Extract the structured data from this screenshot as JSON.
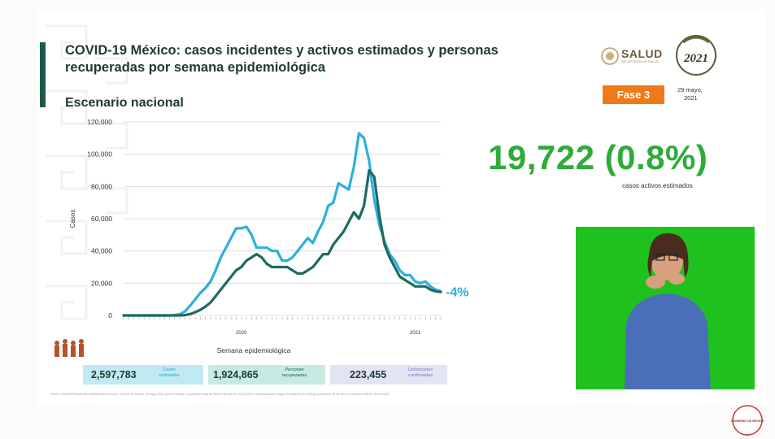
{
  "slide": {
    "title": "COVID-19 México: casos incidentes y activos estimados y personas recuperadas por semana epidemiológica",
    "subtitle": "Escenario nacional",
    "logo_text": "SALUD",
    "logo_subtext": "SECRETARÍA DE SALUD",
    "badge_text": "Fase 3",
    "date_line1": "29 mayo,",
    "date_line2": "2021",
    "year_logo": "2021",
    "big_stat": "19,722 (0.8%)",
    "big_stat_label": "casos activos estimados",
    "trend_label": "-4%",
    "source_note": "Fuente: SSA/SPPS/DGE/DIE/InDRE/Informe técnico. COVID-19 México, 29 mayo 2021 (corte 9:00hrs). La población total de México se usa en 126,014,024 a la actualización mayor de edad 95,421,000 (proyecciones de 30 años en cabecera INEGI, censo 2020)",
    "gob_logo_text": "GOBIERNO DE MÉXICO"
  },
  "stats": [
    {
      "value": "2,597,783",
      "label_line1": "Casos",
      "label_line2": "estimados",
      "bg": "#bfeaf3",
      "fg": "#2aa6c7"
    },
    {
      "value": "1,924,865",
      "label_line1": "Personas",
      "label_line2": "recuperadas",
      "bg": "#c7ebe2",
      "fg": "#1d5a4e"
    },
    {
      "value": "223,455",
      "label_line1": "Defunciones",
      "label_line2": "confirmadas",
      "bg": "#e3e4f3",
      "fg": "#7a7db8"
    }
  ],
  "colors": {
    "estimated": "#2ab0e0",
    "active": "#1d6b5e",
    "trend_label": "#2ab0e0",
    "big_stat": "#2eab3a",
    "badge": "#ee7a1a"
  },
  "chart_data": {
    "type": "line",
    "title": "",
    "xlabel": "Semana epidemiológica",
    "ylabel": "Casos",
    "ylim": [
      0,
      120000
    ],
    "yticks": [
      0,
      20000,
      40000,
      60000,
      80000,
      100000,
      120000
    ],
    "ytick_labels": [
      "0",
      "20,000",
      "40,000",
      "60,000",
      "80,000",
      "100,000",
      "120,000"
    ],
    "xtick_labels": [
      {
        "week": 23,
        "label": "2020"
      },
      {
        "week": 57,
        "label": "2021"
      }
    ],
    "grid": true,
    "legend": "none",
    "series": [
      {
        "color": "#2ab0e0",
        "values": [
          0,
          0,
          0,
          0,
          0,
          0,
          0,
          0,
          0,
          0,
          200,
          800,
          2500,
          6000,
          10000,
          14000,
          17000,
          21000,
          28000,
          36000,
          42000,
          48000,
          54000,
          54000,
          55000,
          50000,
          42000,
          42000,
          42000,
          40000,
          40000,
          34000,
          34000,
          36000,
          40000,
          44000,
          48000,
          45000,
          52000,
          58000,
          68000,
          70000,
          82000,
          80000,
          78000,
          92000,
          113000,
          110000,
          96000,
          72000,
          56000,
          46000,
          38000,
          34000,
          28000,
          25000,
          25000,
          21000,
          20000,
          21000,
          18000,
          16000,
          15000
        ]
      },
      {
        "color": "#1d6b5e",
        "values": [
          0,
          0,
          0,
          0,
          0,
          0,
          0,
          0,
          0,
          0,
          0,
          0,
          200,
          800,
          2000,
          3500,
          5500,
          8000,
          12000,
          16000,
          20000,
          24000,
          28000,
          30000,
          34000,
          36000,
          38000,
          36000,
          32000,
          30000,
          30000,
          30000,
          30000,
          28000,
          26000,
          26000,
          28000,
          30000,
          34000,
          38000,
          38000,
          44000,
          48000,
          52000,
          58000,
          64000,
          60000,
          68000,
          90000,
          86000,
          62000,
          44000,
          36000,
          30000,
          24000,
          22000,
          20000,
          18000,
          18000,
          18000,
          16000,
          15000,
          14500
        ]
      }
    ]
  }
}
